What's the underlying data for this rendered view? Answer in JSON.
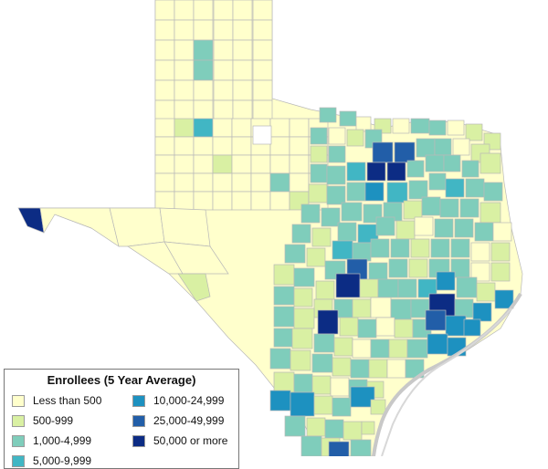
{
  "legend": {
    "title": "Enrollees (5 Year Average)",
    "items": [
      {
        "label": "Less than 500",
        "color": "#ffffcc"
      },
      {
        "label": "500-999",
        "color": "#d9f0a3"
      },
      {
        "label": "1,000-4,999",
        "color": "#7fcdbb"
      },
      {
        "label": "5,000-9,999",
        "color": "#41b6c4"
      },
      {
        "label": "10,000-24,999",
        "color": "#1d91c0"
      },
      {
        "label": "25,000-49,999",
        "color": "#225ea8"
      },
      {
        "label": "50,000 or more",
        "color": "#0c2c84"
      }
    ]
  },
  "colors": {
    "no_data": "#ffffff",
    "county_border": "#b8b8b8",
    "gulf_coast": "#c8c8c8"
  }
}
